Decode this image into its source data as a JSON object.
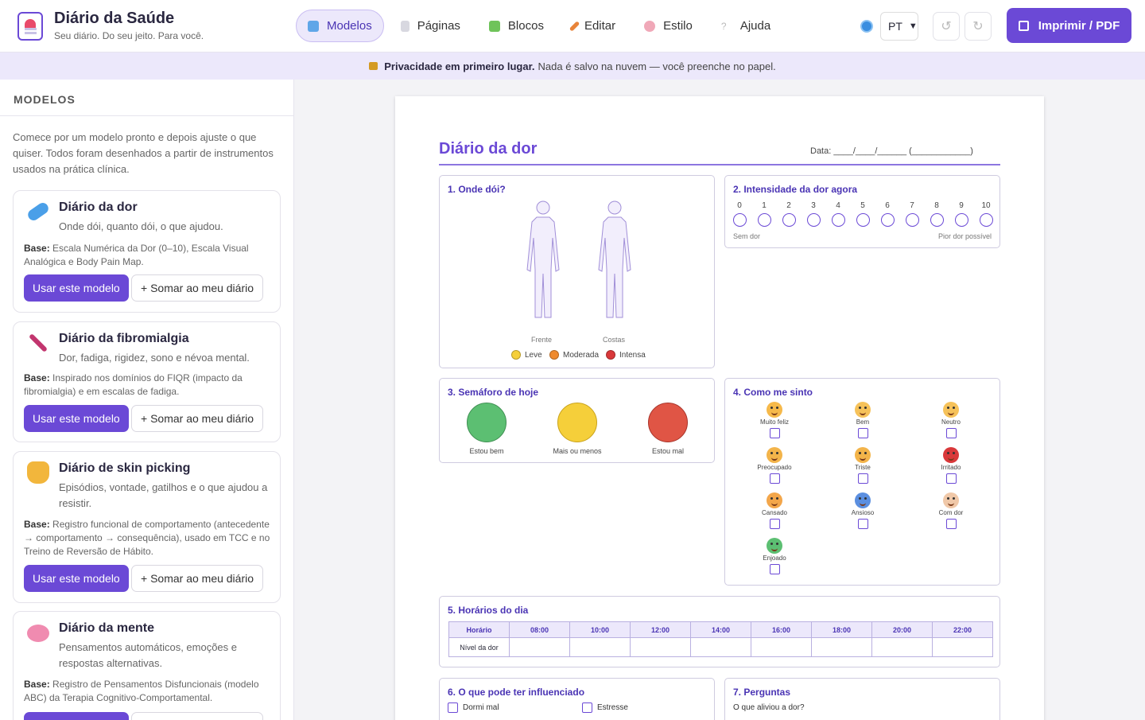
{
  "header": {
    "title": "Diário da Saúde",
    "subtitle": "Seu diário. Do seu jeito. Para você.",
    "nav": [
      {
        "label": "Modelos",
        "icon": "books-icon"
      },
      {
        "label": "Páginas",
        "icon": "page-icon"
      },
      {
        "label": "Blocos",
        "icon": "puzzle-icon"
      },
      {
        "label": "Editar",
        "icon": "pencil-icon"
      },
      {
        "label": "Estilo",
        "icon": "palette-icon"
      },
      {
        "label": "Ajuda",
        "icon": "question-icon"
      }
    ],
    "language": "PT",
    "undo": "↺",
    "redo": "↻",
    "print_label": "Imprimir / PDF"
  },
  "privacy": {
    "bold": "Privacidade em primeiro lugar.",
    "text": "Nada é salvo na nuvem — você preenche no papel."
  },
  "sidebar": {
    "heading": "MODELOS",
    "intro": "Comece por um modelo pronto e depois ajuste o que quiser. Todos foram desenhados a partir de instrumentos usados na prática clínica.",
    "base_label": "Base:",
    "use_label": "Usar este modelo",
    "add_label": "+ Somar ao meu diário",
    "cards": [
      {
        "title": "Diário da dor",
        "desc": "Onde dói, quanto dói, o que ajudou.",
        "base": "Escala Numérica da Dor (0–10), Escala Visual Analógica e Body Pain Map.",
        "icon": "pill-icon",
        "color": "#4a9fe8"
      },
      {
        "title": "Diário da fibromialgia",
        "desc": "Dor, fadiga, rigidez, sono e névoa mental.",
        "base": "Inspirado nos domínios do FIQR (impacto da fibromialgia) e em escalas de fadiga.",
        "icon": "thermometer-icon",
        "color": "#c2356e"
      },
      {
        "title": "Diário de skin picking",
        "desc": "Episódios, vontade, gatilhos e o que ajudou a resistir.",
        "base": "Registro funcional de comportamento (antecedente → comportamento → consequência), usado em TCC e no Treino de Reversão de Hábito.",
        "icon": "hand-icon",
        "color": "#f2b63c"
      },
      {
        "title": "Diário da mente",
        "desc": "Pensamentos automáticos, emoções e respostas alternativas.",
        "base": "Registro de Pensamentos Disfuncionais (modelo ABC) da Terapia Cognitivo-Comportamental.",
        "icon": "brain-icon",
        "color": "#f08bb0"
      }
    ]
  },
  "doc": {
    "title": "Diário da dor",
    "date_label": "Data: ____/____/______   (____________)",
    "where": {
      "title": "1. Onde dói?",
      "front": "Frente",
      "back": "Costas",
      "legend": [
        {
          "label": "Leve",
          "color": "#f5cf3a"
        },
        {
          "label": "Moderada",
          "color": "#ef8a2e"
        },
        {
          "label": "Intensa",
          "color": "#d9383a"
        }
      ]
    },
    "intensity": {
      "title": "2. Intensidade da dor agora",
      "numbers": [
        "0",
        "1",
        "2",
        "3",
        "4",
        "5",
        "6",
        "7",
        "8",
        "9",
        "10"
      ],
      "min_label": "Sem dor",
      "max_label": "Pior dor possível"
    },
    "traffic": {
      "title": "3. Semáforo de hoje",
      "items": [
        {
          "label": "Estou bem",
          "color": "#5cbf72"
        },
        {
          "label": "Mais ou menos",
          "color": "#f5cf3a"
        },
        {
          "label": "Estou mal",
          "color": "#e05545"
        }
      ]
    },
    "mood": {
      "title": "4. Como me sinto",
      "items": [
        {
          "label": "Muito feliz",
          "color": "#f6b94a"
        },
        {
          "label": "Bem",
          "color": "#f6c25a"
        },
        {
          "label": "Neutro",
          "color": "#f6c25a"
        },
        {
          "label": "Preocupado",
          "color": "#f3b44a"
        },
        {
          "label": "Triste",
          "color": "#f3b44a"
        },
        {
          "label": "Irritado",
          "color": "#d9383a"
        },
        {
          "label": "Cansado",
          "color": "#f3a64a"
        },
        {
          "label": "Ansioso",
          "color": "#5b8fe0"
        },
        {
          "label": "Com dor",
          "color": "#f0c8a8"
        },
        {
          "label": "Enjoado",
          "color": "#5cbf72"
        }
      ]
    },
    "schedule": {
      "title": "5. Horários do dia",
      "header": [
        "Horário",
        "08:00",
        "10:00",
        "12:00",
        "14:00",
        "16:00",
        "18:00",
        "20:00",
        "22:00"
      ],
      "row_label": "Nível da dor"
    },
    "influence": {
      "title": "6. O que pode ter influenciado",
      "options": [
        "Dormi mal",
        "Estresse"
      ]
    },
    "questions": {
      "title": "7. Perguntas",
      "first": "O que aliviou a dor?"
    }
  }
}
